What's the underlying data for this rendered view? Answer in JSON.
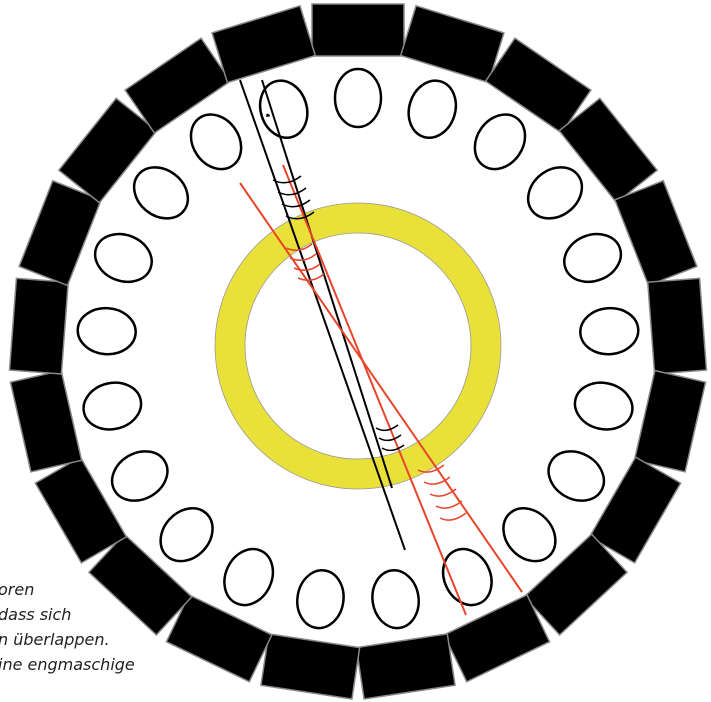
{
  "caption_lines": [
    "oren",
    "dass sich",
    "n überlappen.",
    "ine engmaschige"
  ]
}
